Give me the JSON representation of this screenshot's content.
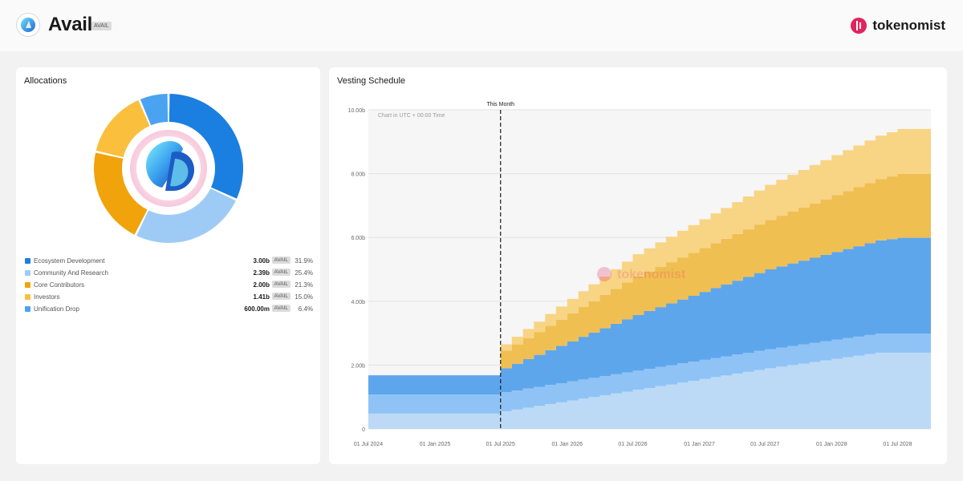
{
  "header": {
    "token_name": "Avail",
    "ticker": "AVAIL",
    "brand": "tokenomist"
  },
  "allocations": {
    "title": "Allocations",
    "items": [
      {
        "name": "Ecosystem Development",
        "amount": "3.00b",
        "unit": "AVAIL",
        "pct": "31.9%",
        "value": 31.9,
        "color": "#1a7fe0"
      },
      {
        "name": "Community And Research",
        "amount": "2.39b",
        "unit": "AVAIL",
        "pct": "25.4%",
        "value": 25.4,
        "color": "#9ecbf6"
      },
      {
        "name": "Core Contributors",
        "amount": "2.00b",
        "unit": "AVAIL",
        "pct": "21.3%",
        "value": 21.3,
        "color": "#f0a30a"
      },
      {
        "name": "Investors",
        "amount": "1.41b",
        "unit": "AVAIL",
        "pct": "15.0%",
        "value": 15.0,
        "color": "#fbbf3e"
      },
      {
        "name": "Unification Drop",
        "amount": "600.00m",
        "unit": "AVAIL",
        "pct": "6.4%",
        "value": 6.4,
        "color": "#4aa3f0"
      }
    ]
  },
  "vesting": {
    "title": "Vesting Schedule",
    "marker_label": "This Month",
    "note": "Chart in UTC + 00:00 Time",
    "watermark": "tokenomist"
  },
  "chart_data": [
    {
      "type": "pie",
      "title": "Allocations",
      "categories": [
        "Ecosystem Development",
        "Community And Research",
        "Core Contributors",
        "Investors",
        "Unification Drop"
      ],
      "values": [
        31.9,
        25.4,
        21.3,
        15.0,
        6.4
      ]
    },
    {
      "type": "area",
      "title": "Vesting Schedule",
      "stacked": true,
      "x_start": "2024-07-01",
      "x_end": "2028-10-01",
      "marker_date": "2025-07-01",
      "x_ticks": [
        "01 Jul 2024",
        "01 Jan 2025",
        "01 Jul 2025",
        "01 Jan 2026",
        "01 Jul 2026",
        "01 Jan 2027",
        "01 Jul 2027",
        "01 Jan 2028",
        "01 Jul 2028"
      ],
      "y_ticks": [
        "0",
        "2.00b",
        "4.00b",
        "6.00b",
        "8.00b",
        "10.00b"
      ],
      "ylim": [
        0,
        10.0
      ],
      "y_unit": "b",
      "grid": true,
      "series": [
        {
          "name": "Community And Research",
          "color": "#bcdaf6",
          "points": [
            [
              "2024-07-01",
              0.48
            ],
            [
              "2025-07-01",
              0.48
            ],
            [
              "2025-07-01",
              0.55
            ],
            [
              "2027-07-01",
              1.9
            ],
            [
              "2028-05-01",
              2.39
            ],
            [
              "2028-10-01",
              2.39
            ]
          ]
        },
        {
          "name": "Unification Drop",
          "color": "#8fc3f5",
          "points": [
            [
              "2024-07-01",
              0.6
            ],
            [
              "2028-10-01",
              0.6
            ]
          ]
        },
        {
          "name": "Ecosystem Development",
          "color": "#5ea6ec",
          "points": [
            [
              "2024-07-01",
              0.6
            ],
            [
              "2025-07-01",
              0.6
            ],
            [
              "2025-07-01",
              0.75
            ],
            [
              "2026-07-01",
              1.75
            ],
            [
              "2027-07-01",
              2.5
            ],
            [
              "2028-07-01",
              3.0
            ],
            [
              "2028-10-01",
              3.0
            ]
          ]
        },
        {
          "name": "Core Contributors",
          "color": "#f0bf52",
          "points": [
            [
              "2024-07-01",
              0.0
            ],
            [
              "2025-07-01",
              0.0
            ],
            [
              "2025-07-01",
              0.55
            ],
            [
              "2026-07-01",
              1.2
            ],
            [
              "2027-07-01",
              1.55
            ],
            [
              "2028-07-01",
              2.0
            ],
            [
              "2028-10-01",
              2.0
            ]
          ]
        },
        {
          "name": "Investors",
          "color": "#f8d485",
          "points": [
            [
              "2024-07-01",
              0.0
            ],
            [
              "2025-07-01",
              0.0
            ],
            [
              "2025-07-01",
              0.2
            ],
            [
              "2026-07-01",
              0.7
            ],
            [
              "2027-07-01",
              1.1
            ],
            [
              "2028-07-01",
              1.41
            ],
            [
              "2028-10-01",
              1.41
            ]
          ]
        }
      ]
    }
  ]
}
